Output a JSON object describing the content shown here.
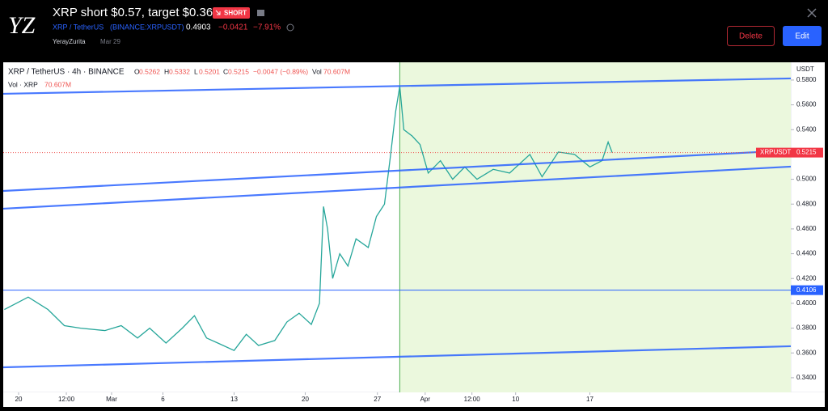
{
  "header": {
    "logo": "YZ",
    "title": "XRP short $0.57, target $0.365",
    "badge": "SHORT",
    "symbol": "XRP / TetherUS",
    "exchange_symbol": "(BINANCE:XRPUSDT)",
    "price": "0.4903",
    "change": "−0.0421",
    "change_percent": "−7.91%",
    "author": "YerayZurita",
    "date": "Mar 29",
    "delete_button": "Delete",
    "edit_button": "Edit"
  },
  "chart_data": {
    "type": "line",
    "title": "XRP / TetherUS · 4h · BINANCE",
    "ohlc": {
      "o_label": "O",
      "o": "0.5262",
      "h_label": "H",
      "h": "0.5332",
      "l_label": "L",
      "l": "0.5201",
      "c_label": "C",
      "c": "0.5215",
      "change": "−0.0047 (−0.89%)",
      "vol_label": "Vol",
      "vol": "70.607M"
    },
    "volume_title": "Vol · XRP",
    "volume": "70.607M",
    "y_unit": "USDT",
    "series": [
      {
        "name": "XRPUSDT",
        "color": "#26a69a",
        "x": [
          -1.4,
          0.95,
          2.9,
          4.5,
          6.1,
          8.5,
          10.1,
          11.7,
          12.9,
          14.5,
          16.1,
          17.3,
          18.5,
          19.6,
          21.2,
          22.4,
          23.6,
          25.2,
          26.4,
          27.6,
          28.8,
          29.6,
          30.0,
          30.4,
          30.9,
          31.6,
          32.4,
          33.2,
          34.4,
          35.2,
          36.0,
          36.6,
          37.1,
          37.5,
          37.9,
          38.7,
          39.5,
          40.3,
          41.5,
          42.7,
          43.9,
          45.1,
          46.7,
          48.3,
          50.3,
          51.5,
          53.1,
          54.7,
          56.2,
          57.4,
          58.0,
          58.4
        ],
        "values": [
          0.395,
          0.405,
          0.395,
          0.382,
          0.38,
          0.378,
          0.382,
          0.372,
          0.38,
          0.368,
          0.38,
          0.39,
          0.372,
          0.368,
          0.362,
          0.375,
          0.366,
          0.37,
          0.385,
          0.392,
          0.383,
          0.4,
          0.478,
          0.46,
          0.42,
          0.44,
          0.43,
          0.452,
          0.445,
          0.47,
          0.48,
          0.52,
          0.555,
          0.575,
          0.54,
          0.535,
          0.528,
          0.505,
          0.515,
          0.5,
          0.51,
          0.5,
          0.508,
          0.505,
          0.52,
          0.502,
          0.522,
          0.52,
          0.51,
          0.515,
          0.53,
          0.5215
        ]
      }
    ],
    "trendlines": [
      {
        "x": [
          -1.51,
          75.97
        ],
        "values": [
          0.5689,
          0.5813
        ]
      },
      {
        "x": [
          -1.51,
          75.97
        ],
        "values": [
          0.4906,
          0.5233
        ]
      },
      {
        "x": [
          -1.51,
          75.97
        ],
        "values": [
          0.4763,
          0.5102
        ]
      },
      {
        "x": [
          -1.51,
          75.97
        ],
        "values": [
          0.3484,
          0.3654
        ]
      }
    ],
    "horizontal_line": {
      "value": 0.4106,
      "label": "0.4106"
    },
    "last_price": {
      "name": "XRPUSDT",
      "value": 0.5215,
      "label": "0.5215"
    },
    "idea_start": 37.5,
    "xlim": [
      -1.51,
      75.97
    ],
    "ylim": [
      0.3282,
      0.5943
    ],
    "xticks": [
      {
        "value": 0,
        "label": "20"
      },
      {
        "value": 4.7,
        "label": "12:00"
      },
      {
        "value": 9.15,
        "label": "Mar"
      },
      {
        "value": 14.2,
        "label": "6"
      },
      {
        "value": 21.2,
        "label": "13"
      },
      {
        "value": 28.2,
        "label": "20"
      },
      {
        "value": 35.3,
        "label": "27"
      },
      {
        "value": 40,
        "label": "Apr"
      },
      {
        "value": 44.6,
        "label": "12:00"
      },
      {
        "value": 48.9,
        "label": "10"
      },
      {
        "value": 56.2,
        "label": "17"
      }
    ],
    "yticks": [
      {
        "value": 0.34,
        "label": "0.3400"
      },
      {
        "value": 0.36,
        "label": "0.3600"
      },
      {
        "value": 0.38,
        "label": "0.3800"
      },
      {
        "value": 0.4,
        "label": "0.4000"
      },
      {
        "value": 0.42,
        "label": "0.4200"
      },
      {
        "value": 0.44,
        "label": "0.4400"
      },
      {
        "value": 0.46,
        "label": "0.4600"
      },
      {
        "value": 0.48,
        "label": "0.4800"
      },
      {
        "value": 0.5,
        "label": "0.5000"
      },
      {
        "value": 0.52,
        "label": "0.5200"
      },
      {
        "value": 0.54,
        "label": "0.5400"
      },
      {
        "value": 0.56,
        "label": "0.5600"
      },
      {
        "value": 0.58,
        "label": "0.5800"
      }
    ]
  }
}
